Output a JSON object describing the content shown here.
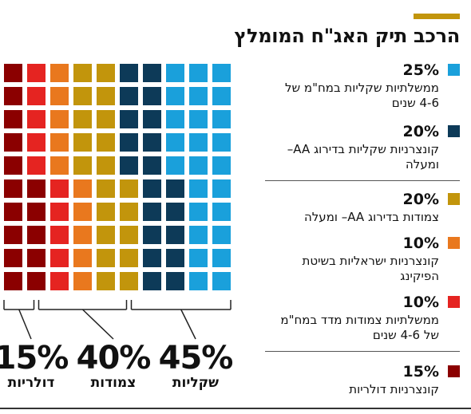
{
  "title": "הרכב תיק האג\"ח המומלץ",
  "colors": {
    "accent": "#c2950c",
    "bottom_rule": "#333333"
  },
  "chart_data": {
    "type": "waffle",
    "title": "הרכב תיק האג\"ח המומלץ",
    "grid": {
      "columns": 10,
      "rows": 10
    },
    "segments": [
      {
        "pct": "25%",
        "value": 25,
        "desc": "ממשלתיות שקליות במח\"מ של 4-6 שנים",
        "color": "#1aa0db"
      },
      {
        "pct": "20%",
        "value": 20,
        "desc": "קונצרניות שקליות בדירוג AA– ומעלה",
        "color": "#0d3a58"
      },
      {
        "pct": "20%",
        "value": 20,
        "desc": "צמודות בדירוג AA– ומעלה",
        "color": "#c2950c"
      },
      {
        "pct": "10%",
        "value": 10,
        "desc": "קונצרניות ישראליות בשיטת הפיקינג",
        "color": "#e9781e"
      },
      {
        "pct": "10%",
        "value": 10,
        "desc": "ממשלתיות צמודות מדד במח\"מ של 4-6 שנים",
        "color": "#e52421"
      },
      {
        "pct": "15%",
        "value": 15,
        "desc": "קונצרניות דולריות",
        "color": "#8b0000"
      }
    ],
    "groups": [
      {
        "pct": "45%",
        "value": 45,
        "label": "שקליות"
      },
      {
        "pct": "40%",
        "value": 40,
        "label": "צמודות"
      },
      {
        "pct": "15%",
        "value": 15,
        "label": "דולריות"
      }
    ]
  }
}
